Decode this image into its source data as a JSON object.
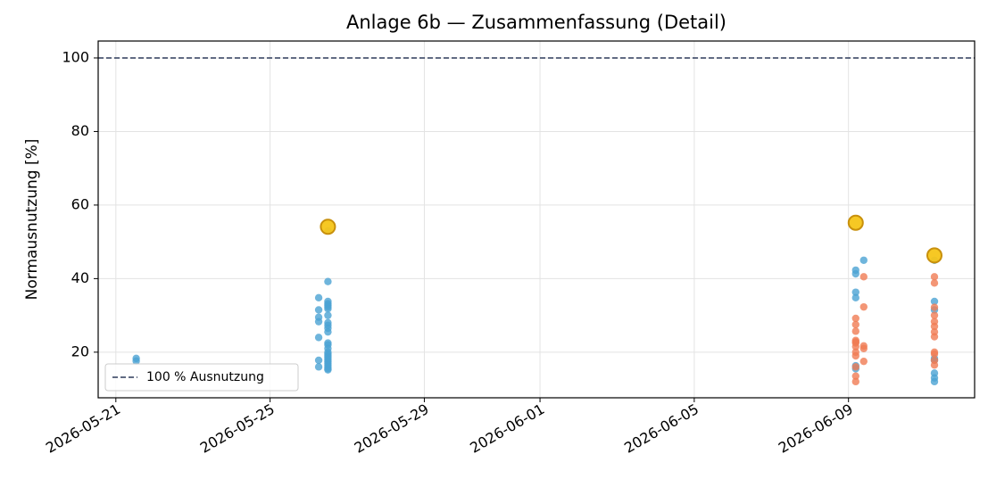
{
  "chart_data": {
    "type": "scatter",
    "title": "Anlage 6b — Zusammenfassung (Detail)",
    "y_label": "Normausnutzung [%]",
    "xlim": [
      "2026-05-20T13:00",
      "2026-06-12T06:30"
    ],
    "xticks": [
      "2026-05-21",
      "2026-05-25",
      "2026-05-29",
      "2026-06-01",
      "2026-06-05",
      "2026-06-09"
    ],
    "ylim": [
      7.6,
      104.6
    ],
    "yticks": [
      20,
      40,
      60,
      80,
      100
    ],
    "grid": true,
    "legend": "lower left",
    "hline": {
      "value": 100,
      "label": "100 % Ausnutzung",
      "color": "#2d3a5a"
    },
    "series": [
      {
        "color": "#4ba3d3",
        "x": [
          "2026-05-21T12:40",
          "2026-05-21T12:40",
          "2026-05-26T12:00",
          "2026-05-26T12:00",
          "2026-05-26T12:00",
          "2026-05-26T12:00",
          "2026-05-26T12:00",
          "2026-05-26T12:00",
          "2026-05-26T12:00",
          "2026-05-26T12:00",
          "2026-05-26T12:00",
          "2026-05-26T12:00",
          "2026-05-26T12:00",
          "2026-05-26T12:00",
          "2026-05-26T12:00",
          "2026-05-26T12:00",
          "2026-05-26T12:00",
          "2026-05-26T12:00",
          "2026-05-26T12:00",
          "2026-05-26T12:00",
          "2026-05-26T12:00",
          "2026-05-26T12:00",
          "2026-05-26T12:00",
          "2026-05-26T12:00",
          "2026-05-26T12:00",
          "2026-05-26T12:00",
          "2026-05-26T12:00",
          "2026-05-26T12:00",
          "2026-05-26T06:15",
          "2026-05-26T06:15",
          "2026-05-26T06:15",
          "2026-05-26T06:15",
          "2026-05-26T06:15",
          "2026-05-26T06:15",
          "2026-05-26T06:15",
          "2026-06-09T04:30",
          "2026-06-09T04:30",
          "2026-06-09T04:30",
          "2026-06-09T04:30",
          "2026-06-09T04:30",
          "2026-06-09T04:30",
          "2026-06-09T09:30",
          "2026-06-11T05:30",
          "2026-06-11T05:30",
          "2026-06-11T05:30",
          "2026-06-11T05:30",
          "2026-06-11T05:30",
          "2026-06-11T05:30",
          "2026-06-11T05:30",
          "2026-06-11T05:30"
        ],
        "values": [
          18.3,
          17.6,
          53,
          39.2,
          33.8,
          33.2,
          32.8,
          32.3,
          31.8,
          30,
          28,
          27.3,
          26.5,
          25.5,
          22.5,
          22,
          21,
          20,
          19.5,
          19,
          18.5,
          18,
          17.5,
          17,
          16.5,
          16,
          15.5,
          15.2,
          34.8,
          31.5,
          29.5,
          28.3,
          24,
          17.8,
          16,
          42.3,
          41.3,
          36.3,
          34.8,
          16.3,
          15.5,
          45,
          45,
          33.8,
          31.5,
          18.3,
          17.8,
          14.3,
          13,
          12
        ]
      },
      {
        "color": "#f07c54",
        "x": [
          "2026-06-09T04:30",
          "2026-06-09T04:30",
          "2026-06-09T04:30",
          "2026-06-09T04:30",
          "2026-06-09T04:30",
          "2026-06-09T04:30",
          "2026-06-09T04:30",
          "2026-06-09T04:30",
          "2026-06-09T04:30",
          "2026-06-09T04:30",
          "2026-06-09T04:30",
          "2026-06-09T04:30",
          "2026-06-09T09:30",
          "2026-06-09T09:30",
          "2026-06-09T09:30",
          "2026-06-09T09:30",
          "2026-06-09T09:30",
          "2026-06-11T05:30",
          "2026-06-11T05:30",
          "2026-06-11T05:30",
          "2026-06-11T05:30",
          "2026-06-11T05:30",
          "2026-06-11T05:30",
          "2026-06-11T05:30",
          "2026-06-11T05:30",
          "2026-06-11T05:30",
          "2026-06-11T05:30",
          "2026-06-11T05:30",
          "2026-06-11T05:30"
        ],
        "values": [
          29.2,
          27.5,
          25.7,
          23.2,
          22.8,
          22.5,
          21.5,
          20,
          19,
          16,
          13.5,
          12,
          40.5,
          32.3,
          21.7,
          21,
          17.5,
          40.5,
          38.8,
          32.2,
          30,
          28.3,
          27,
          25.5,
          24.2,
          20,
          19.5,
          17.8,
          16.5
        ]
      },
      {
        "color": "#f5c518",
        "edge_color": "#c8900c",
        "marker_size": "large",
        "x": [
          "2026-05-26T12:00",
          "2026-06-09T04:30",
          "2026-06-11T05:30"
        ],
        "values": [
          54.1,
          55.2,
          46.3
        ]
      }
    ]
  }
}
